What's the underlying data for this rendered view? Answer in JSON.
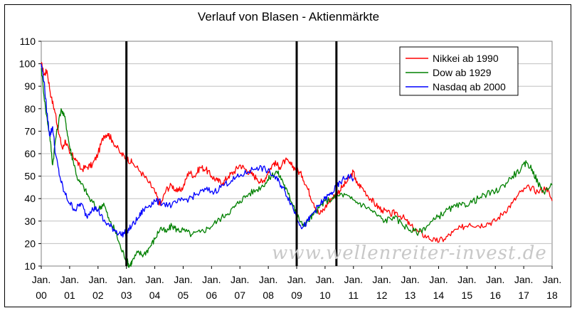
{
  "chart_data": {
    "type": "line",
    "title": "Verlauf von Blasen - Aktienmärkte",
    "ylim": [
      10,
      110
    ],
    "yticks": [
      10,
      20,
      30,
      40,
      50,
      60,
      70,
      80,
      90,
      100,
      110
    ],
    "xlim": [
      0,
      18
    ],
    "xticks": [
      {
        "top": "Jan.",
        "bottom": "00"
      },
      {
        "top": "Jan.",
        "bottom": "01"
      },
      {
        "top": "Jan.",
        "bottom": "02"
      },
      {
        "top": "Jan.",
        "bottom": "03"
      },
      {
        "top": "Jan.",
        "bottom": "04"
      },
      {
        "top": "Jan.",
        "bottom": "05"
      },
      {
        "top": "Jan.",
        "bottom": "06"
      },
      {
        "top": "Jan.",
        "bottom": "07"
      },
      {
        "top": "Jan.",
        "bottom": "08"
      },
      {
        "top": "Jan.",
        "bottom": "09"
      },
      {
        "top": "Jan.",
        "bottom": "10"
      },
      {
        "top": "Jan.",
        "bottom": "11"
      },
      {
        "top": "Jan.",
        "bottom": "12"
      },
      {
        "top": "Jan.",
        "bottom": "13"
      },
      {
        "top": "Jan.",
        "bottom": "14"
      },
      {
        "top": "Jan.",
        "bottom": "15"
      },
      {
        "top": "Jan.",
        "bottom": "16"
      },
      {
        "top": "Jan.",
        "bottom": "17"
      },
      {
        "top": "Jan.",
        "bottom": "18"
      }
    ],
    "vertical_markers": [
      3.0,
      9.0,
      10.4
    ],
    "grid": "horizontal",
    "legend_position": "top-right",
    "series": [
      {
        "name": "Nikkei ab 1990",
        "color": "#ff0000",
        "points": [
          [
            0,
            100
          ],
          [
            0.1,
            95
          ],
          [
            0.2,
            97
          ],
          [
            0.35,
            85
          ],
          [
            0.5,
            78
          ],
          [
            0.6,
            70
          ],
          [
            0.75,
            62
          ],
          [
            0.85,
            66
          ],
          [
            1.0,
            60
          ],
          [
            1.2,
            58
          ],
          [
            1.4,
            53
          ],
          [
            1.6,
            54
          ],
          [
            1.8,
            55
          ],
          [
            2.0,
            60
          ],
          [
            2.2,
            68
          ],
          [
            2.35,
            69
          ],
          [
            2.5,
            66
          ],
          [
            2.8,
            60
          ],
          [
            3.0,
            58
          ],
          [
            3.2,
            56
          ],
          [
            3.5,
            52
          ],
          [
            3.8,
            47
          ],
          [
            4.0,
            43
          ],
          [
            4.2,
            37
          ],
          [
            4.4,
            44
          ],
          [
            4.6,
            46
          ],
          [
            4.8,
            43
          ],
          [
            5.0,
            45
          ],
          [
            5.2,
            52
          ],
          [
            5.4,
            50
          ],
          [
            5.6,
            54
          ],
          [
            5.8,
            53
          ],
          [
            6.0,
            50
          ],
          [
            6.2,
            48
          ],
          [
            6.4,
            47
          ],
          [
            6.6,
            50
          ],
          [
            6.8,
            52
          ],
          [
            7.0,
            55
          ],
          [
            7.2,
            53
          ],
          [
            7.4,
            51
          ],
          [
            7.6,
            49
          ],
          [
            7.8,
            47
          ],
          [
            8.0,
            52
          ],
          [
            8.2,
            56
          ],
          [
            8.4,
            54
          ],
          [
            8.6,
            57
          ],
          [
            8.8,
            55
          ],
          [
            9.0,
            53
          ],
          [
            9.2,
            50
          ],
          [
            9.4,
            44
          ],
          [
            9.6,
            38
          ],
          [
            9.8,
            33
          ],
          [
            10.0,
            36
          ],
          [
            10.2,
            40
          ],
          [
            10.4,
            42
          ],
          [
            10.6,
            45
          ],
          [
            10.8,
            48
          ],
          [
            11.0,
            52
          ],
          [
            11.1,
            47
          ],
          [
            11.3,
            45
          ],
          [
            11.6,
            40
          ],
          [
            11.8,
            37
          ],
          [
            12.0,
            35
          ],
          [
            12.3,
            33
          ],
          [
            12.5,
            34
          ],
          [
            12.8,
            31
          ],
          [
            13.0,
            28
          ],
          [
            13.3,
            25
          ],
          [
            13.6,
            23
          ],
          [
            13.9,
            21
          ],
          [
            14.2,
            22
          ],
          [
            14.5,
            25
          ],
          [
            14.8,
            27
          ],
          [
            15.1,
            29
          ],
          [
            15.4,
            28
          ],
          [
            15.7,
            29
          ],
          [
            16.0,
            30
          ],
          [
            16.3,
            34
          ],
          [
            16.6,
            38
          ],
          [
            16.9,
            43
          ],
          [
            17.2,
            45
          ],
          [
            17.5,
            43
          ],
          [
            17.8,
            45
          ],
          [
            18.0,
            39
          ]
        ]
      },
      {
        "name": "Dow  ab 1929",
        "color": "#008000",
        "points": [
          [
            0,
            98
          ],
          [
            0.15,
            80
          ],
          [
            0.3,
            68
          ],
          [
            0.4,
            55
          ],
          [
            0.5,
            66
          ],
          [
            0.7,
            80
          ],
          [
            0.85,
            75
          ],
          [
            1.0,
            63
          ],
          [
            1.1,
            58
          ],
          [
            1.3,
            48
          ],
          [
            1.5,
            45
          ],
          [
            1.7,
            40
          ],
          [
            2.0,
            35
          ],
          [
            2.2,
            38
          ],
          [
            2.4,
            30
          ],
          [
            2.6,
            26
          ],
          [
            2.8,
            18
          ],
          [
            3.0,
            13
          ],
          [
            3.1,
            10
          ],
          [
            3.2,
            12
          ],
          [
            3.4,
            16
          ],
          [
            3.6,
            15
          ],
          [
            3.8,
            18
          ],
          [
            4.0,
            22
          ],
          [
            4.2,
            27
          ],
          [
            4.4,
            25
          ],
          [
            4.6,
            28
          ],
          [
            4.8,
            26
          ],
          [
            5.0,
            26
          ],
          [
            5.3,
            24
          ],
          [
            5.6,
            25
          ],
          [
            5.9,
            27
          ],
          [
            6.2,
            30
          ],
          [
            6.5,
            33
          ],
          [
            6.8,
            36
          ],
          [
            7.0,
            39
          ],
          [
            7.3,
            42
          ],
          [
            7.6,
            44
          ],
          [
            7.9,
            47
          ],
          [
            8.1,
            50
          ],
          [
            8.3,
            52
          ],
          [
            8.5,
            48
          ],
          [
            8.7,
            42
          ],
          [
            8.9,
            37
          ],
          [
            9.0,
            33
          ],
          [
            9.2,
            28
          ],
          [
            9.4,
            30
          ],
          [
            9.6,
            33
          ],
          [
            9.8,
            36
          ],
          [
            10.0,
            39
          ],
          [
            10.3,
            40
          ],
          [
            10.6,
            42
          ],
          [
            10.9,
            40
          ],
          [
            11.2,
            38
          ],
          [
            11.5,
            36
          ],
          [
            11.8,
            33
          ],
          [
            12.1,
            30
          ],
          [
            12.4,
            32
          ],
          [
            12.7,
            29
          ],
          [
            13.0,
            26
          ],
          [
            13.3,
            25
          ],
          [
            13.6,
            28
          ],
          [
            13.9,
            31
          ],
          [
            14.2,
            34
          ],
          [
            14.5,
            36
          ],
          [
            14.8,
            37
          ],
          [
            15.1,
            38
          ],
          [
            15.4,
            40
          ],
          [
            15.7,
            42
          ],
          [
            16.0,
            43
          ],
          [
            16.3,
            46
          ],
          [
            16.6,
            50
          ],
          [
            16.9,
            53
          ],
          [
            17.1,
            56
          ],
          [
            17.3,
            53
          ],
          [
            17.5,
            47
          ],
          [
            17.7,
            43
          ],
          [
            18.0,
            46
          ]
        ]
      },
      {
        "name": "Nasdaq ab 2000",
        "color": "#0000ff",
        "points": [
          [
            0,
            100
          ],
          [
            0.1,
            92
          ],
          [
            0.2,
            78
          ],
          [
            0.3,
            68
          ],
          [
            0.4,
            72
          ],
          [
            0.5,
            60
          ],
          [
            0.65,
            50
          ],
          [
            0.8,
            43
          ],
          [
            1.0,
            38
          ],
          [
            1.2,
            35
          ],
          [
            1.4,
            38
          ],
          [
            1.6,
            32
          ],
          [
            1.8,
            36
          ],
          [
            2.0,
            35
          ],
          [
            2.2,
            30
          ],
          [
            2.4,
            28
          ],
          [
            2.6,
            26
          ],
          [
            2.8,
            24
          ],
          [
            3.0,
            25
          ],
          [
            3.2,
            28
          ],
          [
            3.4,
            31
          ],
          [
            3.6,
            35
          ],
          [
            3.8,
            37
          ],
          [
            4.0,
            39
          ],
          [
            4.3,
            38
          ],
          [
            4.6,
            37
          ],
          [
            4.9,
            39
          ],
          [
            5.2,
            40
          ],
          [
            5.5,
            42
          ],
          [
            5.8,
            44
          ],
          [
            6.1,
            43
          ],
          [
            6.4,
            46
          ],
          [
            6.7,
            48
          ],
          [
            7.0,
            50
          ],
          [
            7.3,
            52
          ],
          [
            7.6,
            54
          ],
          [
            7.9,
            53
          ],
          [
            8.2,
            50
          ],
          [
            8.4,
            47
          ],
          [
            8.6,
            43
          ],
          [
            8.8,
            38
          ],
          [
            9.0,
            32
          ],
          [
            9.2,
            27
          ],
          [
            9.4,
            30
          ],
          [
            9.6,
            34
          ],
          [
            9.8,
            37
          ],
          [
            10.0,
            40
          ],
          [
            10.2,
            42
          ],
          [
            10.4,
            45
          ],
          [
            10.6,
            48
          ],
          [
            10.8,
            50
          ],
          [
            11.0,
            49
          ]
        ]
      }
    ],
    "watermark": "www.wellenreiter-invest.de"
  }
}
